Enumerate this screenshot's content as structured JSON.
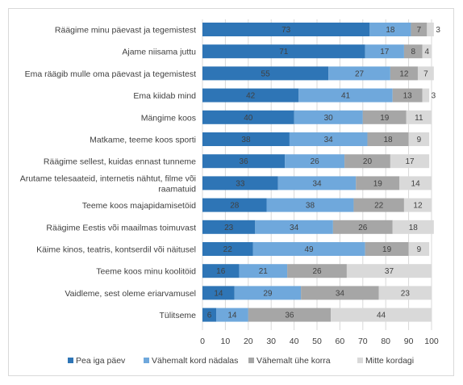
{
  "chart_data": {
    "type": "bar",
    "orientation": "horizontal",
    "stacked": true,
    "categories": [
      "Räägime minu päevast ja tegemistest",
      "Ajame niisama juttu",
      "Ema räägib mulle oma päevast ja tegemistest",
      "Ema kiidab mind",
      "Mängime koos",
      "Matkame, teeme koos sporti",
      "Räägime sellest, kuidas ennast tunneme",
      [
        "Arutame telesaateid, internetis nähtut, filme või",
        "raamatuid"
      ],
      "Teeme koos majapidamisetöid",
      "Räägime Eestis või maailmas toimuvast",
      "Käime kinos, teatris, kontserdil või näitusel",
      "Teeme koos minu koolitöid",
      "Vaidleme, sest oleme eriarvamusel",
      "Tülitseme"
    ],
    "series": [
      {
        "name": "Pea iga päev",
        "color": "#2e75b6",
        "label_color": "#1f1f1f",
        "values": [
          73,
          71,
          55,
          42,
          40,
          38,
          36,
          33,
          28,
          23,
          22,
          16,
          14,
          6
        ]
      },
      {
        "name": "Vähemalt kord nädalas",
        "color": "#6fa8dc",
        "label_color": "#1f1f1f",
        "values": [
          18,
          17,
          27,
          41,
          30,
          34,
          26,
          34,
          38,
          34,
          49,
          21,
          29,
          14
        ]
      },
      {
        "name": "Vähemalt ühe korra",
        "color": "#a6a6a6",
        "label_color": "#1f1f1f",
        "values": [
          7,
          8,
          12,
          13,
          19,
          18,
          20,
          19,
          22,
          26,
          19,
          26,
          34,
          36
        ]
      },
      {
        "name": "Mitte kordagi",
        "color": "#d9d9d9",
        "label_color": "#1f1f1f",
        "values": [
          3,
          4,
          7,
          3,
          11,
          9,
          17,
          14,
          12,
          18,
          9,
          37,
          23,
          44
        ]
      }
    ],
    "xlim": [
      0,
      100
    ],
    "xticks": [
      0,
      10,
      20,
      30,
      40,
      50,
      60,
      70,
      80,
      90,
      100
    ],
    "grid": "vertical",
    "legend_position": "bottom",
    "title": "",
    "xlabel": "",
    "ylabel": ""
  }
}
